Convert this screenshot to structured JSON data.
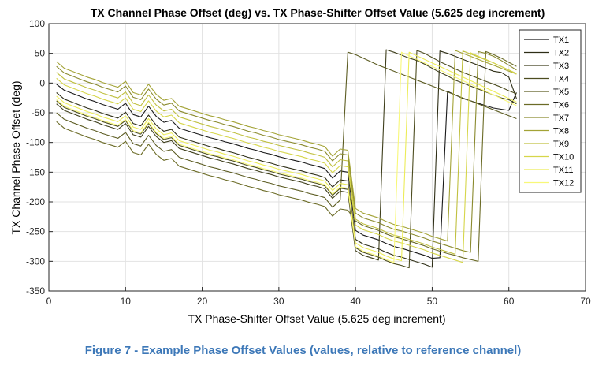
{
  "caption": "Figure 7 - Example Phase Offset Values (values, relative to reference channel)",
  "chart_data": {
    "type": "line",
    "title": "TX Channel Phase Offset (deg) vs. TX Phase-Shifter Offset Value (5.625 deg increment)",
    "xlabel": "TX Phase-Shifter Offset Value (5.625 deg increment)",
    "ylabel": "TX Channel Phase Offset (deg)",
    "xlim": [
      0,
      70
    ],
    "ylim": [
      -350,
      100
    ],
    "xticks": [
      0,
      10,
      20,
      30,
      40,
      50,
      60,
      70
    ],
    "yticks": [
      -350,
      -300,
      -250,
      -200,
      -150,
      -100,
      -50,
      0,
      50,
      100
    ],
    "grid": true,
    "legend_position": "top-right",
    "x": [
      1,
      2,
      3,
      4,
      5,
      6,
      7,
      8,
      9,
      10,
      11,
      12,
      13,
      14,
      15,
      16,
      17,
      18,
      19,
      20,
      21,
      22,
      23,
      24,
      25,
      26,
      27,
      28,
      29,
      30,
      31,
      32,
      33,
      34,
      35,
      36,
      37,
      38,
      39,
      40,
      41,
      42,
      43,
      44,
      45,
      46,
      47,
      48,
      49,
      50,
      51,
      52,
      53,
      54,
      55,
      56,
      57,
      58,
      59,
      60,
      61
    ],
    "series": [
      {
        "name": "TX1",
        "color": "#1a1a1a",
        "values": [
          -2,
          -12,
          -17,
          -22,
          -27,
          -31,
          -36,
          -40,
          -44,
          -34,
          -53,
          -57,
          -39,
          -56,
          -66,
          -63,
          -76,
          -80,
          -84,
          -88,
          -92,
          -95,
          -99,
          -102,
          -106,
          -110,
          -113,
          -117,
          -120,
          -124,
          -127,
          -130,
          -133,
          -137,
          -140,
          -144,
          -160,
          -148,
          -150,
          -248,
          -256,
          -260,
          -264,
          -270,
          -275,
          -278,
          -282,
          -286,
          -290,
          -295,
          -294,
          -14,
          -20,
          -26,
          -30,
          -34,
          -38,
          -42,
          -44,
          -46,
          -16
        ]
      },
      {
        "name": "TX2",
        "color": "#2e2e16",
        "values": [
          -16,
          -27,
          -32,
          -37,
          -42,
          -46,
          -51,
          -55,
          -59,
          -49,
          -68,
          -72,
          -54,
          -71,
          -81,
          -78,
          -91,
          -95,
          -99,
          -103,
          -107,
          -110,
          -114,
          -117,
          -121,
          -125,
          -128,
          -132,
          -135,
          -139,
          -142,
          -145,
          -148,
          -152,
          -155,
          -159,
          -175,
          -163,
          -165,
          -263,
          -271,
          -275,
          -279,
          -285,
          -290,
          -293,
          -297,
          -301,
          -305,
          -310,
          54,
          50,
          45,
          40,
          35,
          30,
          25,
          20,
          18,
          10,
          -26
        ]
      },
      {
        "name": "TX3",
        "color": "#3f3f1c",
        "values": [
          -35,
          -46,
          -51,
          -56,
          -61,
          -65,
          -70,
          -74,
          -78,
          -68,
          -87,
          -91,
          -73,
          -90,
          -100,
          -97,
          -110,
          -114,
          -118,
          -122,
          -126,
          -129,
          -133,
          -136,
          -140,
          -144,
          -147,
          -151,
          -154,
          -158,
          -161,
          -164,
          -167,
          -171,
          -174,
          -178,
          -194,
          -182,
          -184,
          -282,
          -290,
          -294,
          -298,
          56,
          52,
          47,
          42,
          38,
          32,
          25,
          18,
          12,
          5,
          0,
          -5,
          -10,
          -15,
          -20,
          -25,
          -28,
          -35
        ]
      },
      {
        "name": "TX4",
        "color": "#4d4d20",
        "values": [
          -30,
          -41,
          -46,
          -51,
          -56,
          -60,
          -65,
          -69,
          -73,
          -63,
          -82,
          -86,
          -68,
          -85,
          -95,
          -92,
          -105,
          -109,
          -113,
          -117,
          -121,
          -124,
          -128,
          -131,
          -135,
          -139,
          -142,
          -146,
          -149,
          -153,
          -156,
          -159,
          -162,
          -166,
          -169,
          -173,
          -189,
          -177,
          -179,
          -277,
          -285,
          -289,
          -293,
          -299,
          -304,
          -307,
          -311,
          55,
          50,
          43,
          36,
          30,
          24,
          18,
          13,
          8,
          3,
          -2,
          -7,
          -13,
          -18
        ]
      },
      {
        "name": "TX5",
        "color": "#5c5c22",
        "values": [
          -50,
          -61,
          -66,
          -71,
          -76,
          -80,
          -85,
          -89,
          -93,
          -83,
          -102,
          -106,
          -88,
          -105,
          -115,
          -112,
          -125,
          -129,
          -133,
          -137,
          -141,
          -144,
          -148,
          -151,
          -155,
          -159,
          -162,
          -166,
          -169,
          -173,
          -176,
          -179,
          -182,
          -186,
          -189,
          -193,
          -209,
          -197,
          52,
          48,
          42,
          36,
          30,
          25,
          20,
          15,
          10,
          5,
          0,
          -5,
          -10,
          -15,
          -20,
          -25,
          -30,
          -35,
          -40,
          -45,
          -50,
          -55,
          -60
        ]
      },
      {
        "name": "TX6",
        "color": "#6b6b26",
        "values": [
          -65,
          -76,
          -81,
          -86,
          -91,
          -95,
          -100,
          -104,
          -108,
          -98,
          -117,
          -121,
          -103,
          -120,
          -130,
          -127,
          -140,
          -144,
          -148,
          -152,
          -156,
          -159,
          -163,
          -166,
          -170,
          -174,
          -177,
          -181,
          -184,
          -188,
          -191,
          -194,
          -197,
          -201,
          -204,
          -208,
          -224,
          -212,
          -214,
          -232,
          -240,
          -244,
          -248,
          -254,
          -259,
          -262,
          -266,
          -270,
          -274,
          -279,
          -283,
          -287,
          -290,
          -294,
          -297,
          -300,
          53,
          48,
          42,
          35,
          28
        ]
      },
      {
        "name": "TX7",
        "color": "#8a8a2e",
        "values": [
          28,
          17,
          12,
          7,
          2,
          -2,
          -7,
          -11,
          -15,
          -5,
          -24,
          -28,
          -10,
          -27,
          -37,
          -34,
          -47,
          -51,
          -55,
          -59,
          -63,
          -66,
          -70,
          -73,
          -77,
          -81,
          -84,
          -88,
          -91,
          -95,
          -98,
          -101,
          -104,
          -108,
          -111,
          -115,
          -131,
          -119,
          -121,
          -219,
          -227,
          -231,
          -235,
          -241,
          -246,
          -249,
          -253,
          -257,
          -261,
          -266,
          -270,
          -274,
          -278,
          -282,
          -285,
          53,
          50,
          45,
          38,
          30,
          22
        ]
      },
      {
        "name": "TX8",
        "color": "#a3a336",
        "values": [
          36,
          25,
          20,
          15,
          10,
          6,
          1,
          -3,
          -7,
          3,
          -16,
          -20,
          -2,
          -19,
          -29,
          -26,
          -39,
          -43,
          -47,
          -51,
          -55,
          -58,
          -62,
          -65,
          -69,
          -73,
          -76,
          -80,
          -83,
          -87,
          -90,
          -93,
          -96,
          -100,
          -103,
          -107,
          -123,
          -111,
          -113,
          -211,
          -219,
          -223,
          -227,
          -233,
          -238,
          -241,
          -245,
          -249,
          -253,
          -258,
          -262,
          -266,
          55,
          50,
          45,
          40,
          35,
          30,
          25,
          20,
          15
        ]
      },
      {
        "name": "TX9",
        "color": "#c0c040",
        "values": [
          18,
          7,
          2,
          -3,
          -8,
          -12,
          -17,
          -21,
          -25,
          -15,
          -34,
          -38,
          -20,
          -37,
          -47,
          -44,
          -57,
          -61,
          -65,
          -69,
          -73,
          -76,
          -80,
          -83,
          -87,
          -91,
          -94,
          -98,
          -101,
          -105,
          -108,
          -111,
          -114,
          -118,
          -121,
          -125,
          -141,
          -129,
          -131,
          -229,
          -237,
          -241,
          -245,
          -251,
          -256,
          -259,
          -263,
          -267,
          -271,
          -276,
          -280,
          -284,
          -288,
          54,
          49,
          44,
          39,
          34,
          28,
          22,
          16
        ]
      },
      {
        "name": "TX10",
        "color": "#d6d64a",
        "values": [
          8,
          -3,
          -8,
          -13,
          -18,
          -22,
          -27,
          -31,
          -35,
          -25,
          -44,
          -48,
          -30,
          -47,
          -57,
          -54,
          -67,
          -71,
          -75,
          -79,
          -83,
          -86,
          -90,
          -93,
          -97,
          -101,
          -104,
          -108,
          -111,
          -115,
          -118,
          -121,
          -124,
          -128,
          -131,
          -135,
          -151,
          -139,
          -141,
          -239,
          -247,
          -251,
          -255,
          -261,
          -266,
          -269,
          -273,
          -277,
          -281,
          -286,
          -290,
          -294,
          -298,
          -302,
          51,
          45,
          40,
          34,
          28,
          22,
          15
        ]
      },
      {
        "name": "TX11",
        "color": "#ecec58",
        "values": [
          -22,
          -33,
          -38,
          -43,
          -48,
          -52,
          -57,
          -61,
          -65,
          -55,
          -74,
          -78,
          -60,
          -77,
          -87,
          -84,
          -97,
          -101,
          -105,
          -109,
          -113,
          -116,
          -120,
          -123,
          -127,
          -131,
          -134,
          -138,
          -141,
          -145,
          -148,
          -151,
          -154,
          -158,
          -161,
          -165,
          -181,
          -169,
          -171,
          -269,
          -277,
          -281,
          -285,
          -291,
          -296,
          -299,
          52,
          46,
          40,
          34,
          28,
          22,
          16,
          10,
          4,
          -2,
          -8,
          -14,
          -20,
          -26,
          -32
        ]
      },
      {
        "name": "TX12",
        "color": "#f8f878",
        "values": [
          -28,
          -39,
          -44,
          -49,
          -54,
          -58,
          -63,
          -67,
          -71,
          -61,
          -80,
          -84,
          -66,
          -83,
          -93,
          -90,
          -103,
          -107,
          -111,
          -115,
          -119,
          -122,
          -126,
          -129,
          -133,
          -137,
          -140,
          -144,
          -147,
          -151,
          -154,
          -157,
          -160,
          -164,
          -167,
          -171,
          -187,
          -175,
          -177,
          -275,
          -283,
          -287,
          -291,
          -297,
          -302,
          52,
          46,
          40,
          34,
          28,
          22,
          16,
          10,
          4,
          -2,
          -8,
          -14,
          -20,
          -26,
          -32,
          -38
        ]
      }
    ]
  }
}
